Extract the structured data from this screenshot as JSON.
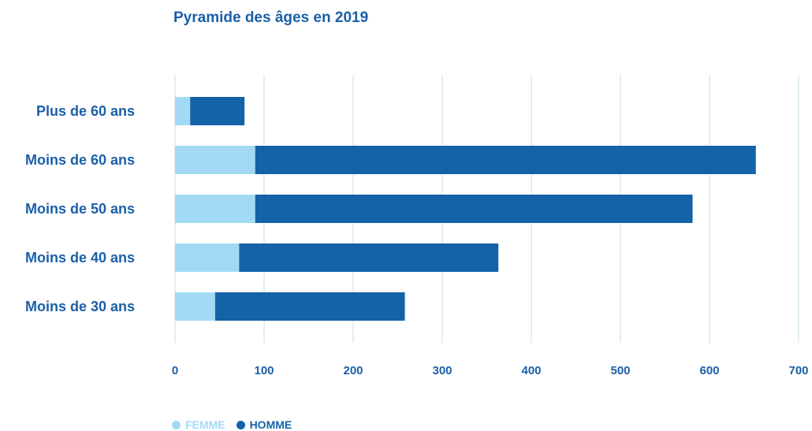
{
  "chart_data": {
    "type": "bar",
    "orientation": "horizontal",
    "stacked": true,
    "title": "Pyramide des âges en 2019",
    "xlabel": "",
    "ylabel": "",
    "categories": [
      "Plus de 60 ans",
      "Moins de 60 ans",
      "Moins de 50 ans",
      "Moins de 40 ans",
      "Moins de 30 ans"
    ],
    "series": [
      {
        "name": "FEMME",
        "color": "#a2daf5",
        "values": [
          17,
          90,
          90,
          72,
          45
        ]
      },
      {
        "name": "HOMME",
        "color": "#1462a8",
        "values": [
          61,
          562,
          491,
          291,
          213
        ]
      }
    ],
    "xlim": [
      0,
      700
    ],
    "xticks": [
      0,
      100,
      200,
      300,
      400,
      500,
      600,
      700
    ],
    "grid": true,
    "legend_position": "bottom-left"
  }
}
